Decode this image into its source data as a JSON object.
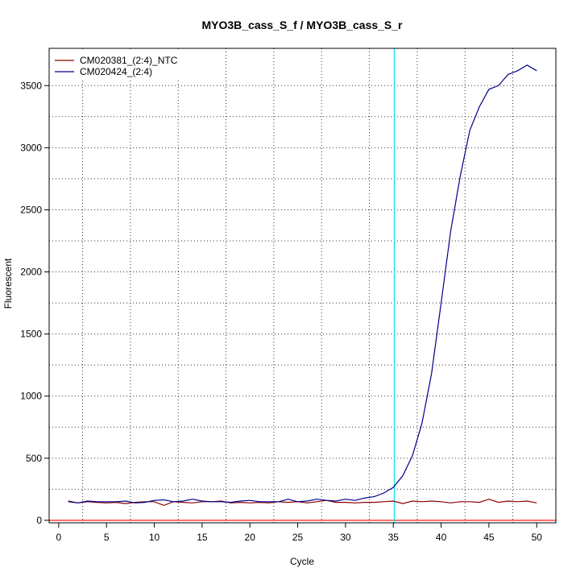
{
  "chart_data": {
    "type": "line",
    "title": "MYO3B_cass_S_f / MYO3B_cass_S_r",
    "xlabel": "Cycle",
    "ylabel": "Fluorescent",
    "xlim": [
      -1,
      52
    ],
    "ylim": [
      -20,
      3800
    ],
    "x_ticks": [
      0,
      5,
      10,
      15,
      20,
      25,
      30,
      35,
      40,
      45,
      50
    ],
    "y_ticks": [
      0,
      500,
      1000,
      1500,
      2000,
      2500,
      3000,
      3500
    ],
    "grid": true,
    "legend_position": "top-left",
    "threshold": {
      "cycle": 35.1,
      "color": "#00e5e5"
    },
    "baseline": {
      "value": 0,
      "color": "#ff0000"
    },
    "series": [
      {
        "name": "CM020381_(2:4)_NTC",
        "color": "#8b0000",
        "x": [
          1,
          2,
          3,
          4,
          5,
          6,
          7,
          8,
          9,
          10,
          11,
          12,
          13,
          14,
          15,
          16,
          17,
          18,
          19,
          20,
          21,
          22,
          23,
          24,
          25,
          26,
          27,
          28,
          29,
          30,
          31,
          32,
          33,
          34,
          35,
          36,
          37,
          38,
          39,
          40,
          41,
          42,
          43,
          44,
          45,
          46,
          47,
          48,
          49,
          50
        ],
        "values": [
          155,
          140,
          150,
          145,
          140,
          145,
          135,
          145,
          150,
          150,
          120,
          150,
          145,
          140,
          150,
          150,
          155,
          140,
          145,
          140,
          145,
          140,
          150,
          145,
          150,
          140,
          150,
          160,
          145,
          145,
          140,
          145,
          145,
          150,
          155,
          135,
          155,
          150,
          155,
          150,
          140,
          150,
          150,
          145,
          170,
          145,
          155,
          150,
          155,
          140
        ]
      },
      {
        "name": "CM020424_(2:4)",
        "color": "#00008b",
        "x": [
          1,
          2,
          3,
          4,
          5,
          6,
          7,
          8,
          9,
          10,
          11,
          12,
          13,
          14,
          15,
          16,
          17,
          18,
          19,
          20,
          21,
          22,
          23,
          24,
          25,
          26,
          27,
          28,
          29,
          30,
          31,
          32,
          33,
          34,
          35,
          36,
          37,
          38,
          39,
          40,
          41,
          42,
          43,
          44,
          45,
          46,
          47,
          48,
          49,
          50
        ],
        "values": [
          150,
          140,
          155,
          150,
          150,
          150,
          155,
          140,
          145,
          160,
          165,
          150,
          155,
          170,
          155,
          150,
          150,
          145,
          155,
          160,
          150,
          150,
          150,
          170,
          150,
          155,
          170,
          160,
          155,
          170,
          160,
          180,
          190,
          220,
          265,
          360,
          520,
          780,
          1180,
          1750,
          2330,
          2770,
          3140,
          3330,
          3470,
          3500,
          3590,
          3620,
          3665,
          3620
        ]
      }
    ]
  }
}
